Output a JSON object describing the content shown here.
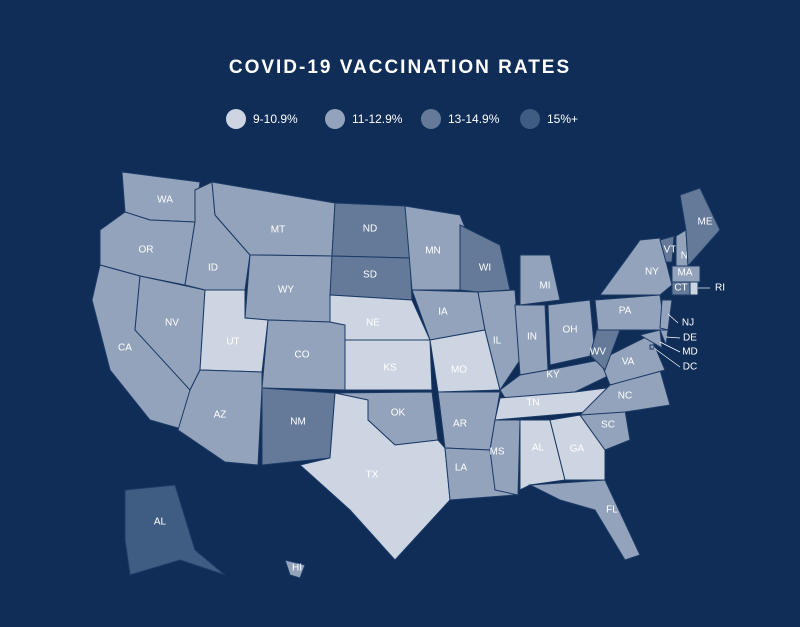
{
  "title": "COVID-19 VACCINATION RATES",
  "legend": [
    {
      "label": "9-10.9%",
      "color": "#cdd5e2"
    },
    {
      "label": "11-12.9%",
      "color": "#93a3bb"
    },
    {
      "label": "13-14.9%",
      "color": "#647a98"
    },
    {
      "label": "15%+",
      "color": "#3f5c82"
    }
  ],
  "states": [
    {
      "label": "WA",
      "group": 1
    },
    {
      "label": "OR",
      "group": 1
    },
    {
      "label": "CA",
      "group": 1
    },
    {
      "label": "NV",
      "group": 1
    },
    {
      "label": "ID",
      "group": 1
    },
    {
      "label": "MT",
      "group": 1
    },
    {
      "label": "WY",
      "group": 1
    },
    {
      "label": "UT",
      "group": 0
    },
    {
      "label": "CO",
      "group": 1
    },
    {
      "label": "AZ",
      "group": 1
    },
    {
      "label": "NM",
      "group": 2
    },
    {
      "label": "ND",
      "group": 2
    },
    {
      "label": "SD",
      "group": 2
    },
    {
      "label": "NE",
      "group": 0
    },
    {
      "label": "KS",
      "group": 0
    },
    {
      "label": "OK",
      "group": 1
    },
    {
      "label": "TX",
      "group": 0
    },
    {
      "label": "MN",
      "group": 1
    },
    {
      "label": "IA",
      "group": 1
    },
    {
      "label": "MO",
      "group": 0
    },
    {
      "label": "AR",
      "group": 1
    },
    {
      "label": "LA",
      "group": 1
    },
    {
      "label": "WI",
      "group": 2
    },
    {
      "label": "IL",
      "group": 1
    },
    {
      "label": "MI",
      "group": 1
    },
    {
      "label": "IN",
      "group": 1
    },
    {
      "label": "OH",
      "group": 1
    },
    {
      "label": "KY",
      "group": 1
    },
    {
      "label": "TN",
      "group": 0
    },
    {
      "label": "MS",
      "group": 1
    },
    {
      "label": "AL",
      "group": 0
    },
    {
      "label": "GA",
      "group": 0
    },
    {
      "label": "FL",
      "group": 1
    },
    {
      "label": "SC",
      "group": 1
    },
    {
      "label": "NC",
      "group": 1
    },
    {
      "label": "VA",
      "group": 1
    },
    {
      "label": "WV",
      "group": 2
    },
    {
      "label": "PA",
      "group": 1
    },
    {
      "label": "NY",
      "group": 1
    },
    {
      "label": "VT",
      "group": 2
    },
    {
      "label": "NH",
      "group": 1
    },
    {
      "label": "ME",
      "group": 2
    },
    {
      "label": "MA",
      "group": 1
    },
    {
      "label": "CT",
      "group": 2
    },
    {
      "label": "RI",
      "group": 0
    },
    {
      "label": "NJ",
      "group": 1
    },
    {
      "label": "DE",
      "group": 1
    },
    {
      "label": "MD",
      "group": 1
    },
    {
      "label": "DC",
      "group": 1
    },
    {
      "label": "AL",
      "group": 3
    },
    {
      "label": "HI",
      "group": 1
    }
  ]
}
